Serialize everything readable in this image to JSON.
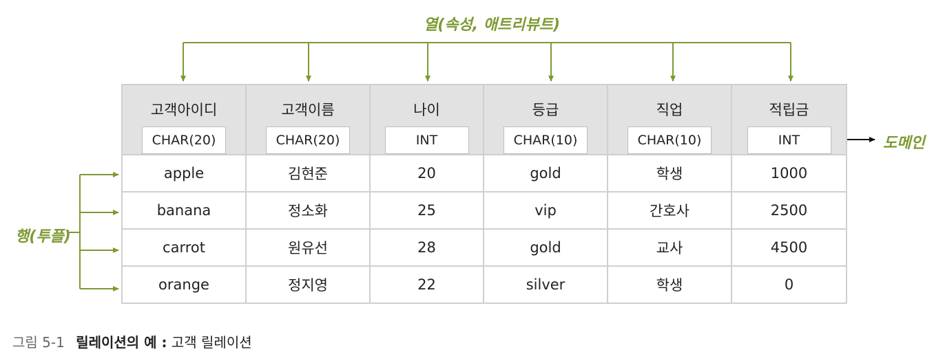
{
  "labels": {
    "columns": "열(속성, 애트리뷰트)",
    "rows": "행(투플)",
    "domain": "도메인"
  },
  "table": {
    "headers": [
      {
        "name": "고객아이디",
        "type": "CHAR(20)"
      },
      {
        "name": "고객이름",
        "type": "CHAR(20)"
      },
      {
        "name": "나이",
        "type": "INT"
      },
      {
        "name": "등급",
        "type": "CHAR(10)"
      },
      {
        "name": "직업",
        "type": "CHAR(10)"
      },
      {
        "name": "적립금",
        "type": "INT"
      }
    ],
    "rows": [
      [
        "apple",
        "김현준",
        "20",
        "gold",
        "학생",
        "1000"
      ],
      [
        "banana",
        "정소화",
        "25",
        "vip",
        "간호사",
        "2500"
      ],
      [
        "carrot",
        "원유선",
        "28",
        "gold",
        "교사",
        "4500"
      ],
      [
        "orange",
        "정지영",
        "22",
        "silver",
        "학생",
        "0"
      ]
    ]
  },
  "caption": {
    "number": "그림 5-1",
    "title": "릴레이션의 예 :",
    "subtitle": "고객 릴레이션"
  },
  "colors": {
    "accent": "#7d9a32",
    "header_bg": "#e2e2e2",
    "border": "#cfcfcf"
  }
}
